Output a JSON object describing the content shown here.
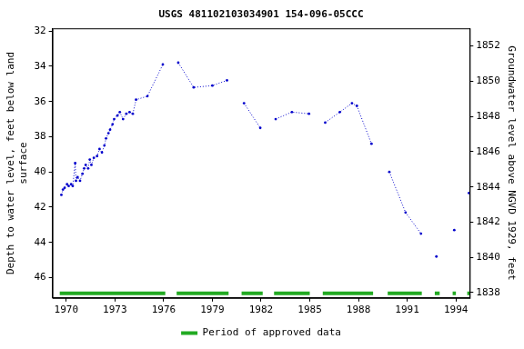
{
  "chart_data": {
    "type": "line",
    "title": "USGS 481102103034901 154-096-05CCC",
    "y_label": [
      "Depth to water level, feet below land",
      "surface"
    ],
    "y2_label": "Groundwater level above NGVD 1929, feet",
    "xlim": [
      1969.15,
      1994.85
    ],
    "xticks": [
      1970,
      1973,
      1976,
      1979,
      1982,
      1985,
      1988,
      1991,
      1994
    ],
    "ylim": [
      47.15,
      31.85
    ],
    "yticks": [
      32,
      34,
      36,
      38,
      40,
      42,
      44,
      46
    ],
    "y2lim": [
      1837.7,
      1853.0
    ],
    "y2ticks": [
      1838,
      1840,
      1842,
      1844,
      1846,
      1848,
      1850,
      1852
    ],
    "grid": false,
    "legend": "bottom",
    "series": [
      {
        "color": "#0000cc",
        "marker": "dot",
        "line_style": "dotted",
        "x": [
          1969.7,
          1969.8,
          1969.9,
          1970.05,
          1970.15,
          1970.3,
          1970.4,
          1970.55,
          1970.6,
          1970.7,
          1970.85,
          1971.0,
          1971.1,
          1971.2,
          1971.35,
          1971.45,
          1971.55,
          1971.7,
          1971.9,
          1972.05,
          1972.2,
          1972.35,
          1972.45,
          1972.6,
          1972.7,
          1972.85,
          1972.95,
          1973.15,
          1973.3,
          1973.5,
          1973.7,
          1973.9,
          1974.1,
          1974.3,
          1975.0,
          1975.95,
          null,
          1976.9,
          1977.85,
          1979.0,
          1979.9,
          null,
          1980.95,
          1981.95,
          null,
          1982.9,
          1983.9,
          1984.95,
          null,
          1985.95,
          1986.85,
          1987.6,
          1987.9,
          1988.8,
          null,
          1989.9,
          1990.9,
          1991.85,
          null,
          1992.8,
          null,
          1993.9,
          null,
          1994.8
        ],
        "values": [
          41.3,
          41.0,
          40.9,
          40.7,
          40.8,
          40.7,
          40.8,
          39.5,
          40.5,
          40.3,
          40.5,
          40.1,
          39.8,
          39.6,
          39.8,
          39.3,
          39.6,
          39.2,
          39.1,
          38.7,
          38.9,
          38.5,
          38.1,
          37.8,
          37.6,
          37.3,
          37.0,
          36.8,
          36.6,
          37.0,
          36.7,
          36.6,
          36.7,
          35.9,
          35.7,
          33.9,
          null,
          33.8,
          35.2,
          35.1,
          34.8,
          null,
          36.1,
          37.5,
          null,
          37.0,
          36.6,
          36.7,
          null,
          37.2,
          36.6,
          36.1,
          36.25,
          38.4,
          null,
          40.0,
          42.3,
          43.5,
          null,
          44.8,
          null,
          43.3,
          null,
          41.2
        ]
      },
      {
        "name": "Period of approved data",
        "color": "#22aa22",
        "type": "period",
        "values": [
          [
            1969.6,
            1976.1
          ],
          [
            1976.8,
            1980.0
          ],
          [
            1980.8,
            1982.1
          ],
          [
            1982.8,
            1985.0
          ],
          [
            1985.8,
            1988.9
          ],
          [
            1989.8,
            1991.9
          ],
          [
            1992.7,
            1993.0
          ],
          [
            1993.8,
            1994.0
          ],
          [
            1994.7,
            1994.85
          ]
        ]
      }
    ]
  }
}
